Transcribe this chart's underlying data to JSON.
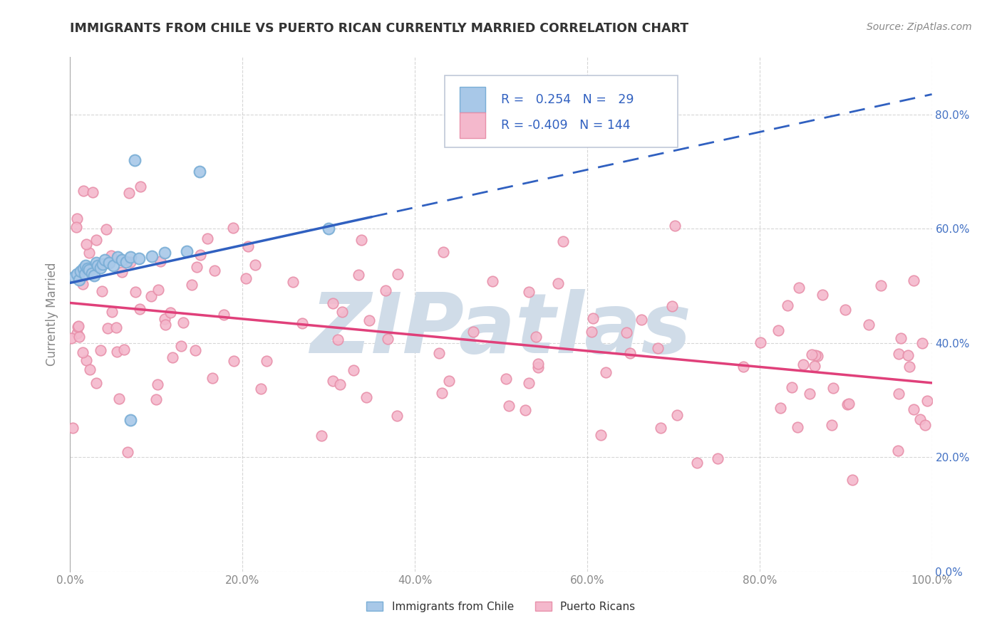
{
  "title": "IMMIGRANTS FROM CHILE VS PUERTO RICAN CURRENTLY MARRIED CORRELATION CHART",
  "source": "Source: ZipAtlas.com",
  "ylabel": "Currently Married",
  "xlim": [
    0.0,
    1.0
  ],
  "ylim": [
    0.0,
    0.9
  ],
  "yticks": [
    0.0,
    0.2,
    0.4,
    0.6,
    0.8
  ],
  "xticks": [
    0.0,
    0.2,
    0.4,
    0.6,
    0.8,
    1.0
  ],
  "blue_R": 0.254,
  "blue_N": 29,
  "pink_R": -0.409,
  "pink_N": 144,
  "blue_color": "#a8c8e8",
  "blue_edge": "#7aaed6",
  "pink_color": "#f4b8cc",
  "pink_edge": "#e890aa",
  "blue_line_color": "#3060c0",
  "pink_line_color": "#e0407a",
  "watermark_color": "#d0dce8",
  "legend_box_color": "#f0f4f8",
  "legend_border_color": "#c0c8d8",
  "axis_color": "#aaaaaa",
  "grid_color": "#cccccc",
  "tick_color": "#888888",
  "right_tick_color": "#4472c4",
  "title_color": "#333333",
  "source_color": "#888888",
  "ylabel_color": "#888888"
}
